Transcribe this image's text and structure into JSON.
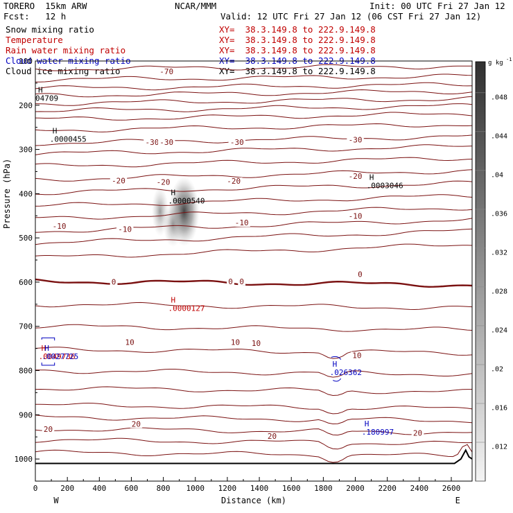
{
  "header": {
    "model": "TORERO  15km ARW",
    "org": "NCAR/MMM",
    "init": "Init: 00 UTC Fri 27 Jan 12",
    "fcst": "Fcst:   12 h",
    "valid": "Valid: 12 UTC Fri 27 Jan 12 (06 CST Fri 27 Jan 12)"
  },
  "fields": [
    {
      "name": "Snow mixing ratio",
      "xy": "XY=  38.3.149.8 to 222.9.149.8",
      "color": "#000000"
    },
    {
      "name": "Temperature",
      "xy": "XY=  38.3.149.8 to 222.9.149.8",
      "color": "#c00000"
    },
    {
      "name": "Rain water mixing ratio",
      "xy": "XY=  38.3.149.8 to 222.9.149.8",
      "color": "#c00000"
    },
    {
      "name": "Cloud water mixing ratio",
      "xy": "XY=  38.3.149.8 to 222.9.149.8",
      "color": "#0000c0"
    },
    {
      "name": "Cloud ice mixing ratio",
      "xy": "XY=  38.3.149.8 to 222.9.149.8",
      "color": "#000000"
    }
  ],
  "chart_data": {
    "type": "cross-section contour",
    "xlabel": "Distance (km)",
    "ylabel": "Pressure (hPa)",
    "xlim": [
      0,
      2730
    ],
    "ylim": [
      100,
      1050
    ],
    "xticks": [
      "0",
      "200",
      "400",
      "600",
      "800",
      "1000",
      "1200",
      "1400",
      "1600",
      "1800",
      "2000",
      "2200",
      "2400",
      "2600"
    ],
    "yticks": [
      "100",
      "200",
      "300",
      "400",
      "500",
      "600",
      "700",
      "800",
      "900",
      "1000"
    ],
    "endpoints": {
      "west": "W",
      "east": "E"
    },
    "colorbar": {
      "unit": "g kg",
      "unit_exp": "-1",
      "labels": [
        ".012",
        ".016",
        ".02",
        ".024",
        ".028",
        ".032",
        ".036",
        ".04",
        ".044",
        ".048"
      ]
    },
    "isotherm_labels": [
      {
        "text": "-70",
        "x": 820,
        "p": 128
      },
      {
        "text": "-30",
        "x": 730,
        "p": 288
      },
      {
        "text": "-30",
        "x": 820,
        "p": 288
      },
      {
        "text": "-30",
        "x": 1260,
        "p": 288
      },
      {
        "text": "-30",
        "x": 2000,
        "p": 283
      },
      {
        "text": "-20",
        "x": 520,
        "p": 375
      },
      {
        "text": "-20",
        "x": 800,
        "p": 378
      },
      {
        "text": "-20",
        "x": 1240,
        "p": 376
      },
      {
        "text": "-20",
        "x": 2000,
        "p": 365
      },
      {
        "text": "-10",
        "x": 150,
        "p": 478
      },
      {
        "text": "-10",
        "x": 560,
        "p": 485
      },
      {
        "text": "-10",
        "x": 1290,
        "p": 470
      },
      {
        "text": "-10",
        "x": 2000,
        "p": 455
      },
      {
        "text": "0",
        "x": 490,
        "p": 604
      },
      {
        "text": "0",
        "x": 1220,
        "p": 603
      },
      {
        "text": "0",
        "x": 1290,
        "p": 603
      },
      {
        "text": "0",
        "x": 2030,
        "p": 587
      },
      {
        "text": "10",
        "x": 590,
        "p": 740
      },
      {
        "text": "10",
        "x": 1250,
        "p": 740
      },
      {
        "text": "10",
        "x": 1380,
        "p": 743
      },
      {
        "text": "10",
        "x": 2010,
        "p": 770
      },
      {
        "text": "20",
        "x": 80,
        "p": 937
      },
      {
        "text": "20",
        "x": 630,
        "p": 925
      },
      {
        "text": "20",
        "x": 1480,
        "p": 953
      },
      {
        "text": "20",
        "x": 2390,
        "p": 946
      }
    ],
    "maxima": [
      {
        "text": ".0000455",
        "x": 90,
        "p": 283,
        "color": "#000000"
      },
      {
        "text": ".0000540",
        "x": 830,
        "p": 422,
        "color": "#000000"
      },
      {
        "text": ".0003046",
        "x": 2070,
        "p": 388,
        "color": "#000000"
      },
      {
        "text": ".0000127",
        "x": 830,
        "p": 665,
        "color": "#c00000"
      },
      {
        "text": ".026362",
        "x": 1840,
        "p": 810,
        "color": "#0000c0"
      },
      {
        "text": ".180997",
        "x": 2040,
        "p": 945,
        "color": "#0000c0"
      },
      {
        "text": ".0049736",
        "x": 20,
        "p": 774,
        "color": "#c00000"
      },
      {
        "text": ".0027725",
        "x": 40,
        "p": 774,
        "color": "#0000c0"
      },
      {
        "text": "04709",
        "x": 0,
        "p": 190,
        "color": "#000000"
      }
    ],
    "snow_band": {
      "x_range": [
        680,
        960
      ],
      "p_range": [
        370,
        560
      ],
      "max": ".0000540"
    }
  }
}
